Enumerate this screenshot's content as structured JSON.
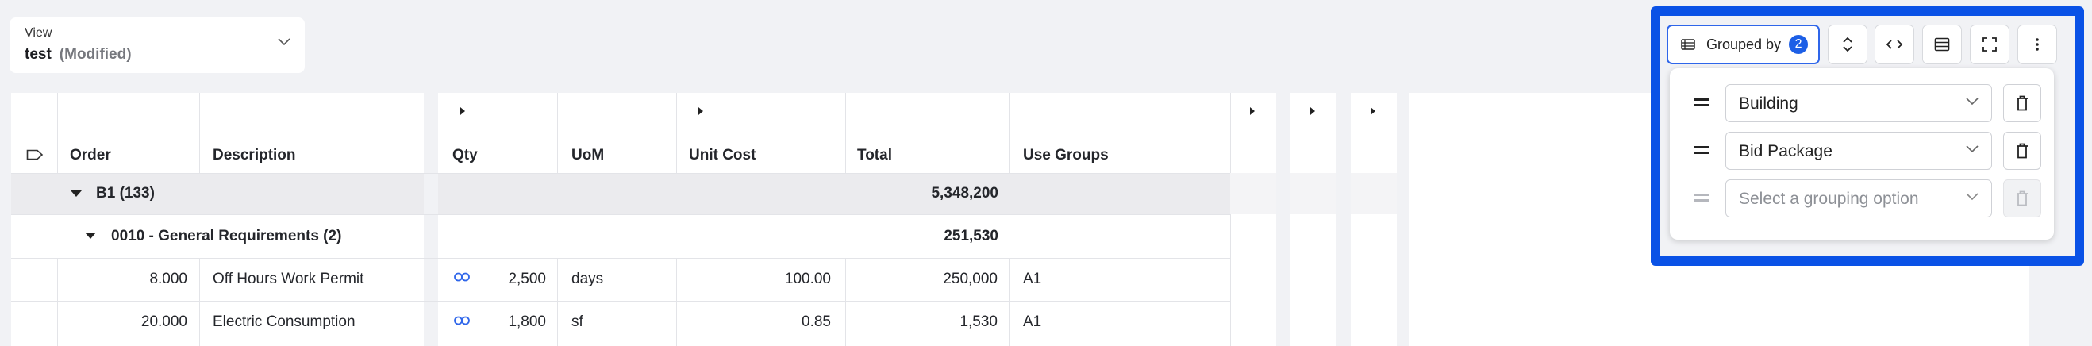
{
  "view": {
    "label": "View",
    "name": "test",
    "status": "(Modified)"
  },
  "table": {
    "columns": {
      "order": "Order",
      "description": "Description",
      "qty": "Qty",
      "uom": "UoM",
      "unit_cost": "Unit Cost",
      "total": "Total",
      "use_groups": "Use Groups"
    },
    "group_rows": [
      {
        "label": "B1 (133)",
        "total": "5,348,200"
      },
      {
        "label": "0010 - General Requirements (2)",
        "total": "251,530"
      }
    ],
    "rows": [
      {
        "order": "8.000",
        "description": "Off Hours Work Permit",
        "qty": "2,500",
        "uom": "days",
        "unit_cost": "100.00",
        "total": "250,000",
        "use_groups": "A1"
      },
      {
        "order": "20.000",
        "description": "Electric Consumption",
        "qty": "1,800",
        "uom": "sf",
        "unit_cost": "0.85",
        "total": "1,530",
        "use_groups": "A1"
      }
    ]
  },
  "toolbar": {
    "grouped_label": "Grouped by",
    "grouped_count": "2",
    "icons": [
      "collapse-expand-icon",
      "code-icon",
      "row-density-icon",
      "fullscreen-icon",
      "more-vertical-icon"
    ]
  },
  "grouping": {
    "options": [
      {
        "value": "Building"
      },
      {
        "value": "Bid Package"
      }
    ],
    "placeholder": "Select a grouping option"
  },
  "colors": {
    "accent": "#0a52e6",
    "badge": "#1d5fe6",
    "group_row": "#ebebee"
  }
}
